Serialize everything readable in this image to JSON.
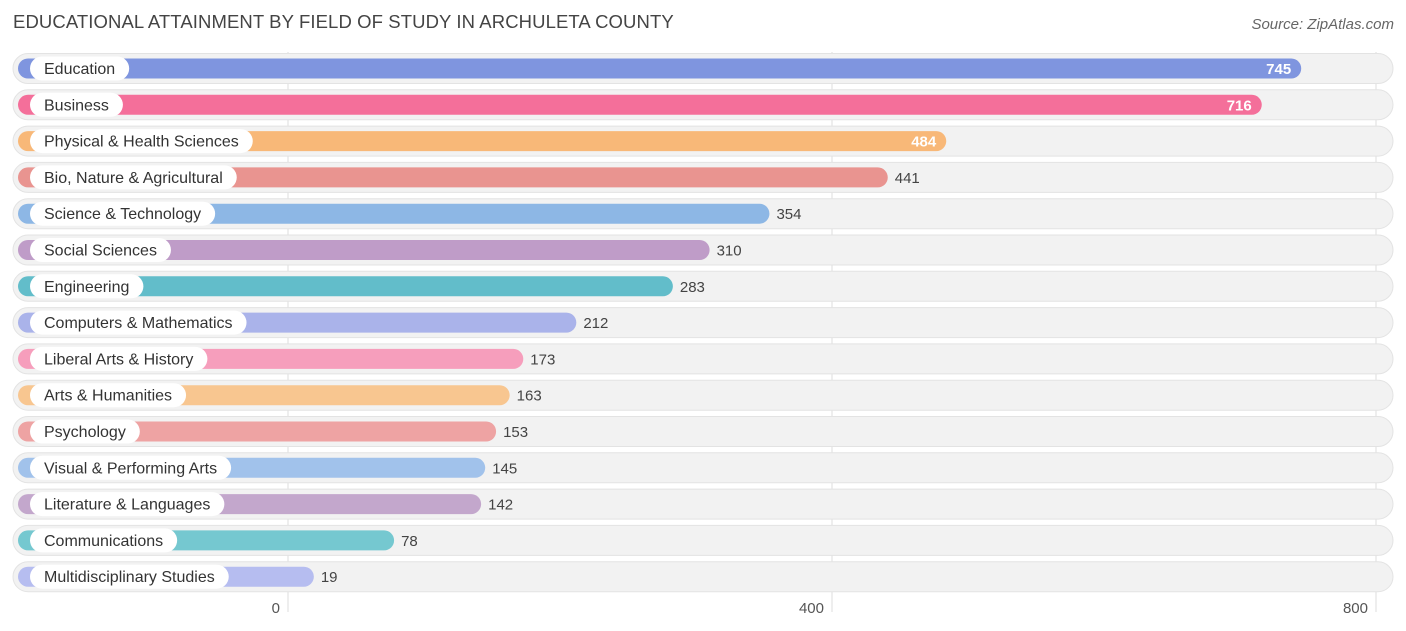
{
  "header": {
    "title": "EDUCATIONAL ATTAINMENT BY FIELD OF STUDY IN ARCHULETA COUNTY",
    "source": "Source: ZipAtlas.com"
  },
  "colors": {
    "gridline": "#dddddd",
    "track": "#f2f2f2",
    "track_border": "#e3e3e3",
    "label_text": "#333333",
    "value_text_outside": "#444444",
    "value_text_inside": "#ffffff",
    "tick_text": "#555555"
  },
  "chart_data": {
    "type": "bar",
    "orientation": "horizontal",
    "title": "EDUCATIONAL ATTAINMENT BY FIELD OF STUDY IN ARCHULETA COUNTY",
    "xlabel": "",
    "ylabel": "",
    "xlim": [
      0,
      800
    ],
    "ticks": [
      0,
      400,
      800
    ],
    "grid": true,
    "categories": [
      "Education",
      "Business",
      "Physical & Health Sciences",
      "Bio, Nature & Agricultural",
      "Science & Technology",
      "Social Sciences",
      "Engineering",
      "Computers & Mathematics",
      "Liberal Arts & History",
      "Arts & Humanities",
      "Psychology",
      "Visual & Performing Arts",
      "Literature & Languages",
      "Communications",
      "Multidisciplinary Studies"
    ],
    "values": [
      745,
      716,
      484,
      441,
      354,
      310,
      283,
      212,
      173,
      163,
      153,
      145,
      142,
      78,
      19
    ],
    "bar_colors": [
      "#7f95df",
      "#f46f9a",
      "#f8b878",
      "#e99490",
      "#8db7e5",
      "#bf9cc8",
      "#62bdca",
      "#aab3ea",
      "#f69ebc",
      "#f8c690",
      "#eea3a3",
      "#a1c2eb",
      "#c3a7cc",
      "#75c8d0",
      "#b6bdf0"
    ]
  }
}
